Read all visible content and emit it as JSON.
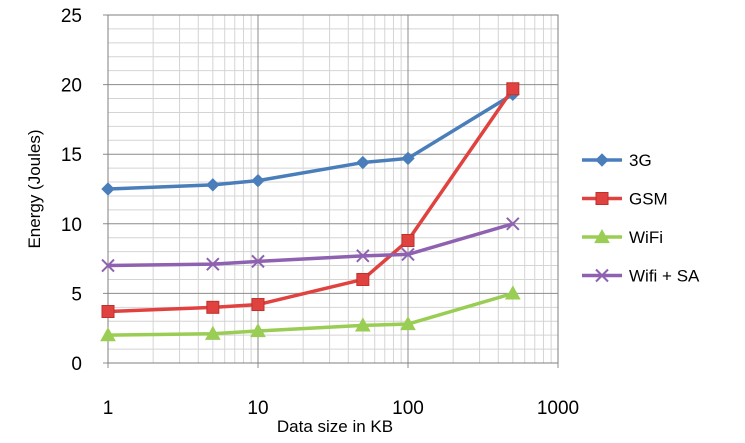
{
  "chart_data": {
    "type": "line",
    "title": "",
    "xlabel": "Data size in KB",
    "ylabel": "Energy (Joules)",
    "x_scale": "log",
    "xlim": [
      1,
      1000
    ],
    "ylim": [
      0,
      25
    ],
    "x_ticks": [
      "1",
      "10",
      "100",
      "1000"
    ],
    "y_ticks": [
      "0",
      "5",
      "10",
      "15",
      "20",
      "25"
    ],
    "grid": true,
    "legend_position": "right",
    "x": [
      1,
      5,
      10,
      50,
      100,
      500
    ],
    "series": [
      {
        "name": "3G",
        "color": "#4a7ebb",
        "marker": "diamond",
        "values": [
          12.5,
          12.8,
          13.1,
          14.4,
          14.7,
          19.3
        ]
      },
      {
        "name": "GSM",
        "color": "#e0433f",
        "marker": "square",
        "values": [
          3.7,
          4.0,
          4.2,
          6.0,
          8.8,
          19.7
        ]
      },
      {
        "name": "WiFi",
        "color": "#9acd54",
        "marker": "triangle",
        "values": [
          2.0,
          2.1,
          2.3,
          2.7,
          2.8,
          5.0
        ]
      },
      {
        "name": "Wifi + SA",
        "color": "#8e62b0",
        "marker": "x",
        "values": [
          7.0,
          7.1,
          7.3,
          7.7,
          7.8,
          10.0
        ]
      }
    ]
  }
}
